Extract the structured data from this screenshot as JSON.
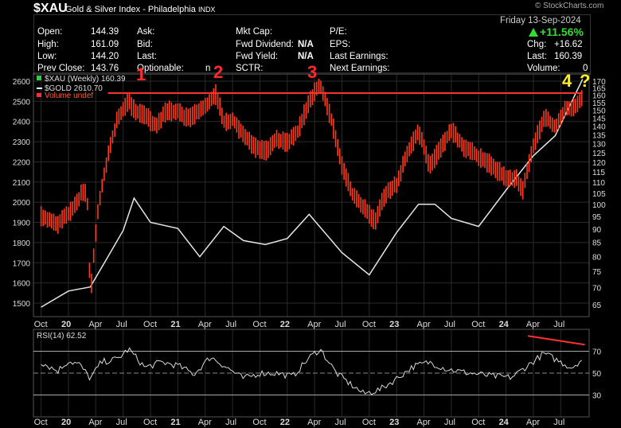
{
  "header": {
    "symbol": "$XAU",
    "name": "Gold & Silver Index - Philadelphia",
    "exchange": "INDX",
    "watermark": "© StockCharts.com",
    "date": "Friday 13-Sep-2024"
  },
  "quote": {
    "open_label": "Open:",
    "open": "144.39",
    "high_label": "High:",
    "high": "161.09",
    "low_label": "Low:",
    "low": "144.20",
    "prev_label": "Prev Close:",
    "prev": "143.76",
    "ask_label": "Ask:",
    "bid_label": "Bid:",
    "last_label": "Last:",
    "optionable_label": "Optionable:",
    "optionable": "n",
    "mktcap_label": "Mkt Cap:",
    "fwddiv_label": "Fwd Dividend:",
    "fwddiv": "N/A",
    "fwdyield_label": "Fwd Yield:",
    "fwdyield": "N/A",
    "sctr_label": "SCTR:",
    "pe_label": "P/E:",
    "eps_label": "EPS:",
    "lastearn_label": "Last Earnings:",
    "nextearn_label": "Next Earnings:",
    "pct": "+11.56%",
    "chg_label": "Chg:",
    "chg": "+16.62",
    "last2_label": "Last:",
    "last2": "160.39",
    "vol_label": "Volume:",
    "vol": "0"
  },
  "annotations": {
    "a1": "1",
    "a2": "2",
    "a3": "3",
    "a4": "4",
    "a5": "?"
  },
  "colors": {
    "price": "#ff3a1a",
    "gold": "#ffffff",
    "line": "#ff3030",
    "rsi": "#d9d9d9",
    "annot_red": "#ff2a2a",
    "annot_yellow": "#ffee22",
    "grid": "#2a2a2a",
    "axis": "#666666"
  },
  "chart_data": [
    {
      "type": "line",
      "title": "$XAU (Weekly)",
      "legend": [
        {
          "label": "$XAU (Weekly) 160.39"
        },
        {
          "label": "$GOLD 2610.70"
        },
        {
          "label": "Volume undef"
        }
      ],
      "x_tick_labels": [
        "Oct",
        "20",
        "Apr",
        "Jul",
        "Oct",
        "21",
        "Apr",
        "Jul",
        "Oct",
        "22",
        "Apr",
        "Jul",
        "Oct",
        "23",
        "Apr",
        "Jul",
        "Oct",
        "24",
        "Apr",
        "Jul"
      ],
      "left_axis": {
        "label": "$GOLD",
        "ticks": [
          1500,
          1600,
          1700,
          1800,
          1900,
          2000,
          2100,
          2200,
          2300,
          2400,
          2500,
          2600
        ]
      },
      "right_axis": {
        "label": "$XAU",
        "scale": "log",
        "ticks": [
          65,
          70,
          75,
          80,
          85,
          90,
          95,
          100,
          105,
          110,
          115,
          120,
          125,
          130,
          135,
          140,
          145,
          150,
          155,
          160,
          165,
          170
        ]
      },
      "series": [
        {
          "name": "$XAU (Weekly)",
          "axis": "right",
          "x": [
            2019.75,
            2019.9,
            2020.0,
            2020.08,
            2020.13,
            2020.17,
            2020.2,
            2020.23,
            2020.27,
            2020.35,
            2020.45,
            2020.55,
            2020.6,
            2020.7,
            2020.8,
            2020.9,
            2021.0,
            2021.1,
            2021.25,
            2021.35,
            2021.42,
            2021.5,
            2021.6,
            2021.7,
            2021.8,
            2021.9,
            2022.0,
            2022.1,
            2022.2,
            2022.3,
            2022.4,
            2022.5,
            2022.6,
            2022.7,
            2022.8,
            2022.9,
            2023.0,
            2023.1,
            2023.2,
            2023.3,
            2023.4,
            2023.5,
            2023.6,
            2023.7,
            2023.8,
            2023.9,
            2024.0,
            2024.1,
            2024.15,
            2024.25,
            2024.35,
            2024.45,
            2024.55,
            2024.65,
            2024.7
          ],
          "values": [
            95,
            92,
            96,
            101,
            106,
            104,
            66,
            80,
            98,
            120,
            145,
            156,
            150,
            147,
            140,
            150,
            149,
            145,
            152,
            161,
            143,
            144,
            135,
            128,
            126,
            132,
            131,
            137,
            156,
            168,
            145,
            118,
            104,
            99,
            93,
            105,
            109,
            125,
            137,
            118,
            127,
            138,
            129,
            125,
            121,
            117,
            112,
            112,
            106,
            128,
            146,
            140,
            151,
            153,
            160
          ]
        },
        {
          "name": "$GOLD",
          "axis": "left",
          "x": [
            2019.75,
            2020.0,
            2020.2,
            2020.35,
            2020.5,
            2020.6,
            2020.75,
            2021.0,
            2021.2,
            2021.42,
            2021.6,
            2021.8,
            2022.0,
            2022.2,
            2022.5,
            2022.75,
            2023.0,
            2023.2,
            2023.35,
            2023.5,
            2023.75,
            2024.0,
            2024.25,
            2024.45,
            2024.7
          ],
          "values": [
            1480,
            1560,
            1580,
            1720,
            1860,
            2020,
            1900,
            1870,
            1730,
            1880,
            1810,
            1790,
            1820,
            1940,
            1750,
            1640,
            1850,
            1990,
            1990,
            1920,
            1880,
            2060,
            2230,
            2330,
            2610
          ]
        },
        {
          "name": "resistance",
          "axis": "right",
          "x": [
            2020.55,
            2024.7
          ],
          "values": [
            161.5,
            161.5
          ]
        }
      ]
    },
    {
      "type": "line",
      "title": "RSI(14) 62.52",
      "y_ticks": [
        30,
        50,
        70
      ],
      "ylim": [
        10,
        90
      ],
      "series": [
        {
          "name": "RSI(14)",
          "x": [
            2019.75,
            2019.9,
            2020.0,
            2020.1,
            2020.2,
            2020.3,
            2020.45,
            2020.55,
            2020.7,
            2020.85,
            2021.0,
            2021.15,
            2021.3,
            2021.45,
            2021.6,
            2021.75,
            2021.9,
            2022.05,
            2022.2,
            2022.3,
            2022.45,
            2022.55,
            2022.7,
            2022.85,
            2023.0,
            2023.15,
            2023.3,
            2023.45,
            2023.6,
            2023.75,
            2023.9,
            2024.05,
            2024.2,
            2024.35,
            2024.5,
            2024.6,
            2024.7
          ],
          "values": [
            60,
            52,
            61,
            58,
            45,
            60,
            63,
            72,
            55,
            60,
            57,
            49,
            65,
            55,
            45,
            50,
            50,
            47,
            64,
            72,
            50,
            42,
            31,
            35,
            45,
            56,
            60,
            54,
            51,
            49,
            47,
            46,
            57,
            68,
            60,
            55,
            63
          ]
        },
        {
          "name": "trendline",
          "x": [
            2024.2,
            2024.72
          ],
          "values": [
            84,
            76
          ]
        }
      ]
    }
  ]
}
